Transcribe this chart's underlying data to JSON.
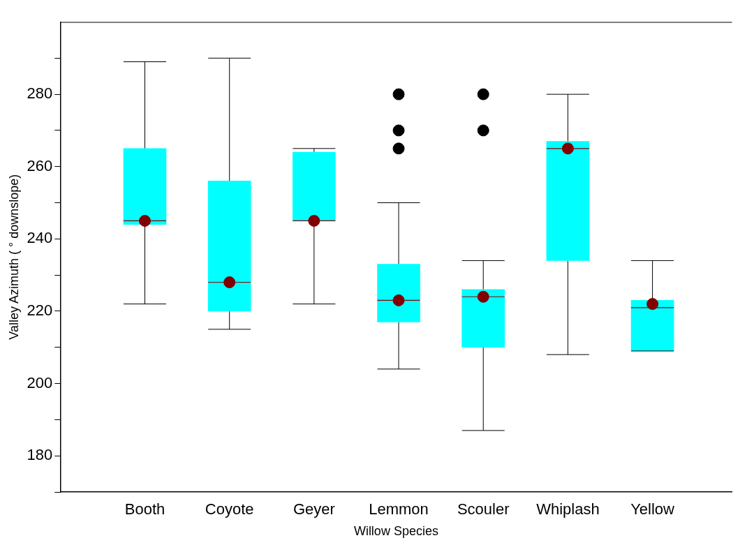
{
  "chart_data": {
    "type": "box",
    "xlabel": "Willow Species",
    "ylabel": "Valley Azimuth ( ° downslope)",
    "categories": [
      "Booth",
      "Coyote",
      "Geyer",
      "Lemmon",
      "Scouler",
      "Whiplash",
      "Yellow"
    ],
    "color": "#00ffff",
    "boxes": [
      {
        "low": 222,
        "q1": 244,
        "median": 245,
        "q3": 265,
        "high": 289,
        "mean": 245
      },
      {
        "low": 215,
        "q1": 220,
        "median": 228,
        "q3": 256,
        "high": 290,
        "mean": 228
      },
      {
        "low": 222,
        "q1": 245,
        "median": 245,
        "q3": 264,
        "high": 265,
        "mean": 245
      },
      {
        "low": 204,
        "q1": 217,
        "median": 223,
        "q3": 233,
        "high": 250,
        "mean": 223,
        "outliers": [
          265,
          270,
          280
        ]
      },
      {
        "low": 187,
        "q1": 210,
        "median": 224,
        "q3": 226,
        "high": 234,
        "mean": 224,
        "outliers": [
          270,
          280
        ]
      },
      {
        "low": 208,
        "q1": 234,
        "median": 265,
        "q3": 267,
        "high": 280,
        "mean": 265
      },
      {
        "low": 209,
        "q1": 209,
        "median": 221,
        "q3": 223,
        "high": 234,
        "mean": 222
      }
    ],
    "ylim": [
      170,
      300
    ],
    "yticks": [
      {
        "value": 170,
        "label": null
      },
      180,
      {
        "value": 190,
        "label": null
      },
      200,
      {
        "value": 210,
        "label": null
      },
      220,
      {
        "value": 230,
        "label": null
      },
      240,
      {
        "value": 250,
        "label": null
      },
      260,
      {
        "value": 270,
        "label": null
      },
      280,
      {
        "value": 290,
        "label": null
      }
    ],
    "grid": false
  }
}
